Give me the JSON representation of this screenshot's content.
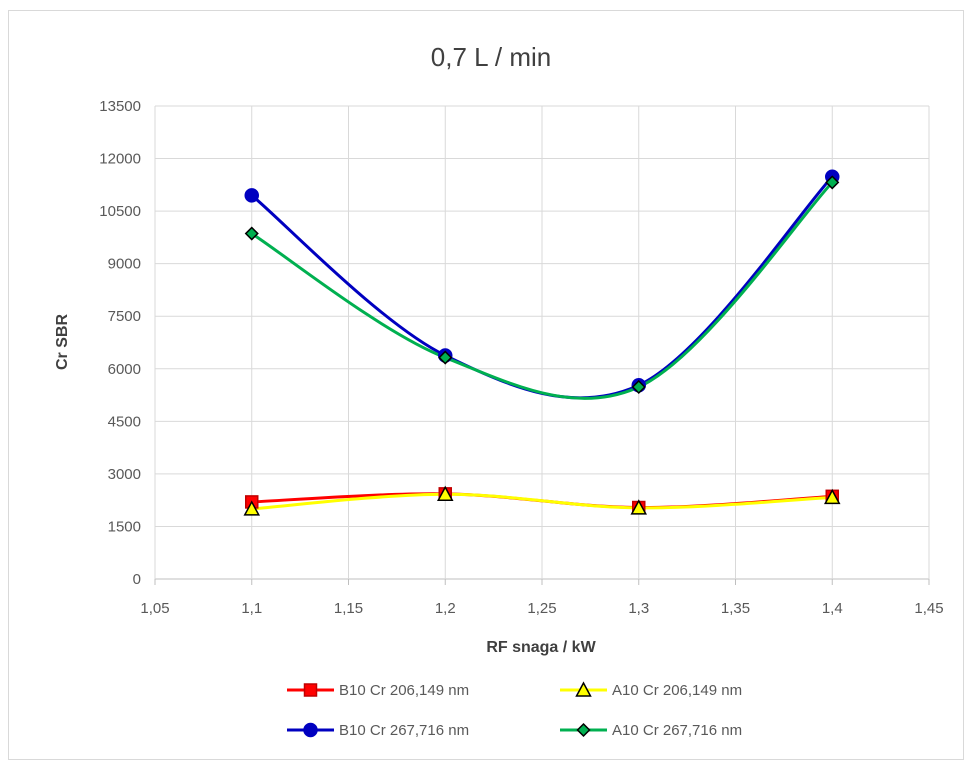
{
  "chart_data": {
    "type": "scatter",
    "title": "0,7 L / min",
    "xlabel": "RF snaga / kW",
    "ylabel": "Cr SBR",
    "xlim": [
      1.05,
      1.45
    ],
    "ylim": [
      0,
      13500
    ],
    "x_ticks": [
      "1,05",
      "1,1",
      "1,15",
      "1,2",
      "1,25",
      "1,3",
      "1,35",
      "1,4",
      "1,45"
    ],
    "y_ticks": [
      "0",
      "1500",
      "3000",
      "4500",
      "6000",
      "7500",
      "9000",
      "10500",
      "12000",
      "13500"
    ],
    "x": [
      1.1,
      1.2,
      1.3,
      1.4
    ],
    "grid": true,
    "smooth_lines": true,
    "legend_position": "bottom",
    "series": [
      {
        "name": "B10 Cr 206,149 nm",
        "values": [
          2200,
          2430,
          2040,
          2360
        ],
        "color": "#ff0000",
        "marker": "square",
        "marker_color": "#ff0000",
        "marker_edge": "#c00000"
      },
      {
        "name": "A10 Cr 206,149 nm",
        "values": [
          2000,
          2420,
          2030,
          2330
        ],
        "color": "#ffff00",
        "marker": "triangle",
        "marker_color": "#ffff00",
        "marker_edge": "#000000"
      },
      {
        "name": "B10 Cr 267,716 nm",
        "values": [
          10950,
          6380,
          5530,
          11480
        ],
        "color": "#0000c0",
        "marker": "circle",
        "marker_color": "#0000c0",
        "marker_edge": "#0000c0"
      },
      {
        "name": "A10 Cr 267,716 nm",
        "values": [
          9860,
          6320,
          5480,
          11320
        ],
        "color": "#00b050",
        "marker": "diamond",
        "marker_color": "#00b050",
        "marker_edge": "#000000"
      }
    ]
  }
}
